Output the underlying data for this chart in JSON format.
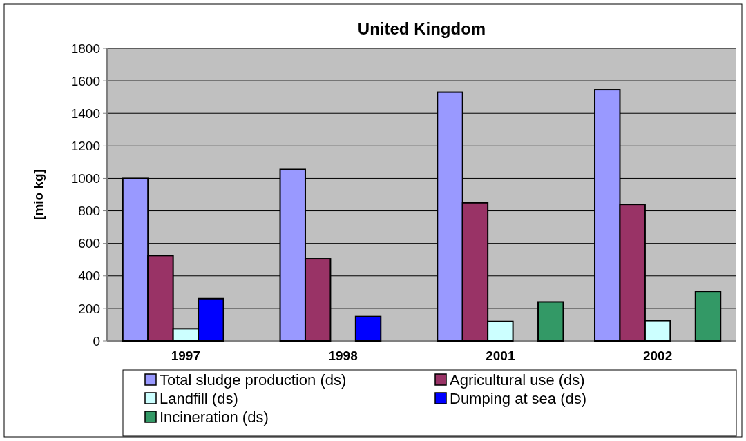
{
  "chart_data": {
    "type": "bar",
    "title": "United Kingdom",
    "ylabel": "[mio kg]",
    "categories": [
      "1997",
      "1998",
      "2001",
      "2002"
    ],
    "series": [
      {
        "name": "Total sludge production (ds)",
        "color": "#9999ff",
        "values": [
          1000,
          1055,
          1530,
          1545
        ]
      },
      {
        "name": "Agricultural use (ds)",
        "color": "#993366",
        "values": [
          525,
          505,
          850,
          840
        ]
      },
      {
        "name": "Landfill (ds)",
        "color": "#ccffff",
        "values": [
          75,
          null,
          120,
          125
        ]
      },
      {
        "name": "Dumping at sea (ds)",
        "color": "#0000ff",
        "values": [
          260,
          150,
          null,
          null
        ]
      },
      {
        "name": "Incineration (ds)",
        "color": "#339966",
        "values": [
          null,
          null,
          240,
          305
        ]
      }
    ],
    "ylim": [
      0,
      1800
    ],
    "yticks": [
      0,
      200,
      400,
      600,
      800,
      1000,
      1200,
      1400,
      1600,
      1800
    ],
    "grid": "y",
    "legend": "bottom"
  }
}
